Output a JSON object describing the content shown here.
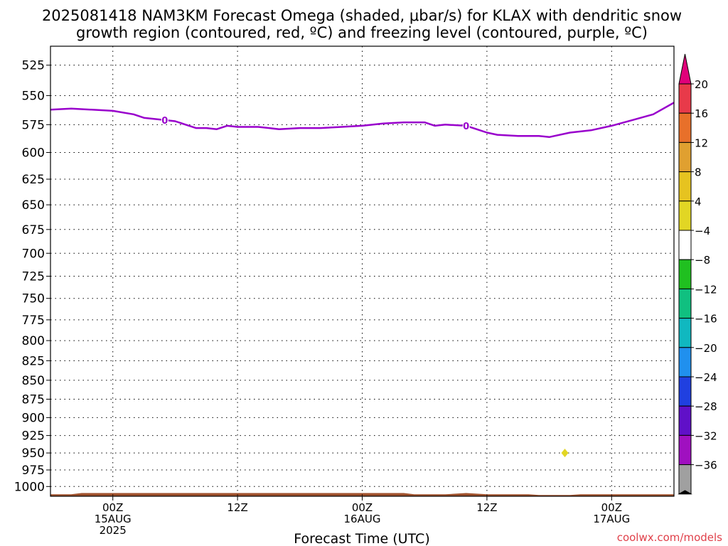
{
  "chart_data": {
    "type": "line",
    "title_line1": "2025081418 NAM3KM Forecast Omega (shaded, μbar/s) for KLAX with dendritic snow",
    "title_line2": "growth region (contoured, red, ºC) and freezing level (contoured, purple, ºC)",
    "xlabel": "Forecast Time (UTC)",
    "credit": "coolwx.com/models",
    "y_axis": {
      "scale": "pressure (inverted)",
      "range": [
        1015,
        510
      ],
      "ticks": [
        "525",
        "550",
        "575",
        "600",
        "625",
        "650",
        "675",
        "700",
        "725",
        "750",
        "775",
        "800",
        "825",
        "850",
        "875",
        "900",
        "925",
        "950",
        "975",
        "1000"
      ]
    },
    "x_axis": {
      "range_hours": [
        -6,
        54
      ],
      "ticks": [
        {
          "hour": 0,
          "lines": [
            "00Z",
            "15AUG",
            "2025"
          ]
        },
        {
          "hour": 12,
          "lines": [
            "12Z"
          ]
        },
        {
          "hour": 24,
          "lines": [
            "00Z",
            "16AUG"
          ]
        },
        {
          "hour": 36,
          "lines": [
            "12Z"
          ]
        },
        {
          "hour": 48,
          "lines": [
            "00Z",
            "17AUG"
          ]
        }
      ]
    },
    "grid": true,
    "series": [
      {
        "color": "#9900cc",
        "contour_labels": [
          {
            "hour": 5,
            "text": "0"
          },
          {
            "hour": 34,
            "text": "0"
          }
        ],
        "points": [
          [
            -6,
            562
          ],
          [
            -4,
            561
          ],
          [
            -2,
            562
          ],
          [
            0,
            563
          ],
          [
            2,
            566
          ],
          [
            3,
            569
          ],
          [
            5,
            571
          ],
          [
            6,
            572
          ],
          [
            7,
            575
          ],
          [
            8,
            578
          ],
          [
            9,
            578
          ],
          [
            10,
            579
          ],
          [
            11,
            576
          ],
          [
            12,
            577
          ],
          [
            14,
            577
          ],
          [
            16,
            579
          ],
          [
            18,
            578
          ],
          [
            20,
            578
          ],
          [
            22,
            577
          ],
          [
            24,
            576
          ],
          [
            26,
            574
          ],
          [
            28,
            573
          ],
          [
            30,
            573
          ],
          [
            31,
            576
          ],
          [
            32,
            575
          ],
          [
            34,
            576
          ],
          [
            35,
            579
          ],
          [
            36,
            582
          ],
          [
            37,
            584
          ],
          [
            39,
            585
          ],
          [
            41,
            585
          ],
          [
            42,
            586
          ],
          [
            44,
            582
          ],
          [
            46,
            580
          ],
          [
            48,
            576
          ],
          [
            50,
            571
          ],
          [
            52,
            566
          ],
          [
            54,
            556
          ]
        ]
      }
    ],
    "omega_areas": [
      {
        "hour": 43.5,
        "pressure": 950,
        "value": 4,
        "color": "#e2d624"
      }
    ],
    "terrain": {
      "color": "#a0522d",
      "points": [
        [
          -6,
          1012
        ],
        [
          -4,
          1012
        ],
        [
          -3,
          1010
        ],
        [
          0,
          1010
        ],
        [
          12,
          1010
        ],
        [
          24,
          1010
        ],
        [
          28,
          1010
        ],
        [
          29,
          1012
        ],
        [
          32,
          1012
        ],
        [
          33,
          1011
        ],
        [
          34,
          1010
        ],
        [
          35,
          1011
        ],
        [
          36,
          1012
        ],
        [
          40,
          1012
        ],
        [
          41,
          1013
        ],
        [
          44,
          1013
        ],
        [
          45,
          1012
        ],
        [
          54,
          1012
        ]
      ]
    },
    "colorbar": {
      "labels": [
        "20",
        "16",
        "12",
        "8",
        "4",
        "−4",
        "−8",
        "−12",
        "−16",
        "−20",
        "−24",
        "−28",
        "−32",
        "−36"
      ],
      "top_arrow": "#e0007a",
      "bottom_arrow": "#000000",
      "colors": [
        "#e83a4a",
        "#e8702a",
        "#e0a030",
        "#e6c320",
        "#e2d624",
        "#ffffff",
        "#20c020",
        "#10c080",
        "#10b8c0",
        "#2090ee",
        "#2040e0",
        "#6010c8",
        "#a010c0",
        "#a0a0a0"
      ]
    }
  }
}
